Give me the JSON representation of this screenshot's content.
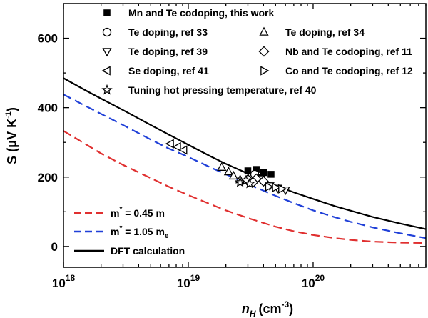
{
  "chart_data": {
    "type": "scatter",
    "xscale": "log",
    "xlim": [
      1e+18,
      8e+20
    ],
    "ylim": [
      -60,
      700
    ],
    "xlabel_main": "n",
    "xlabel_sub": "H",
    "xlabel_unit": "(cm",
    "xlabel_exp": "-3",
    "xlabel_close": ")",
    "ylabel_pre": "S (",
    "ylabel_mu": "μ",
    "ylabel_mid": "V K",
    "ylabel_exp": "-1",
    "ylabel_close": ")",
    "xticks": [
      {
        "value": 1e+18,
        "base": "10",
        "exp": "18"
      },
      {
        "value": 1e+19,
        "base": "10",
        "exp": "19"
      },
      {
        "value": 1e+20,
        "base": "10",
        "exp": "20"
      }
    ],
    "yticks": [
      0,
      200,
      400,
      600
    ],
    "scatter_series": [
      {
        "name": "Mn and Te codoping, this work",
        "marker": "square-filled",
        "points": [
          [
            3e+19,
            218
          ],
          [
            3.5e+19,
            222
          ],
          [
            4e+19,
            213
          ],
          [
            4.6e+19,
            208
          ],
          [
            3.7e+19,
            200
          ]
        ]
      },
      {
        "name": "Te doping, ref 33",
        "marker": "circle",
        "points": [
          [
            3.2e+19,
            200
          ],
          [
            3.4e+19,
            208
          ],
          [
            3.1e+19,
            186
          ]
        ]
      },
      {
        "name": "Te doping, ref 34",
        "marker": "triangle-up",
        "points": [
          [
            1.85e+19,
            228
          ],
          [
            2.1e+19,
            215
          ],
          [
            2.3e+19,
            203
          ],
          [
            2.6e+19,
            192
          ]
        ]
      },
      {
        "name": "Te doping, ref 39",
        "marker": "triangle-down",
        "points": [
          [
            3.8e+19,
            195
          ],
          [
            4.5e+19,
            175
          ],
          [
            5.2e+19,
            168
          ],
          [
            6e+19,
            163
          ]
        ]
      },
      {
        "name": "Nb and Te codoping, ref 11",
        "marker": "diamond",
        "points": [
          [
            3e+19,
            193
          ],
          [
            3.5e+19,
            195
          ],
          [
            4e+19,
            188
          ],
          [
            3.3e+19,
            185
          ]
        ]
      },
      {
        "name": "Se doping, ref 41",
        "marker": "triangle-left",
        "points": [
          [
            7.2e+18,
            296
          ],
          [
            8.2e+18,
            287
          ],
          [
            9.2e+18,
            278
          ]
        ]
      },
      {
        "name": "Co and Te codoping, ref 12",
        "marker": "triangle-right",
        "points": [
          [
            4.4e+19,
            172
          ],
          [
            5e+19,
            170
          ],
          [
            5.6e+19,
            166
          ]
        ]
      },
      {
        "name": "Tuning hot pressing temperature, ref 40",
        "marker": "star",
        "points": [
          [
            2.6e+19,
            185
          ],
          [
            2.9e+19,
            190
          ],
          [
            3.1e+19,
            181
          ]
        ]
      }
    ],
    "line_series": [
      {
        "name_main": "m",
        "name_exp": "*",
        "name_rest": " = 0.45 m",
        "name_sub": "",
        "color": "#e03030",
        "dash": true,
        "points": [
          [
            1e+18,
            333
          ],
          [
            1.5e+18,
            295
          ],
          [
            2e+18,
            268
          ],
          [
            3e+18,
            235
          ],
          [
            5e+18,
            197
          ],
          [
            7e+18,
            172
          ],
          [
            1e+19,
            148
          ],
          [
            1.5e+19,
            122
          ],
          [
            2e+19,
            104
          ],
          [
            3e+19,
            82
          ],
          [
            5e+19,
            57
          ],
          [
            7e+19,
            44
          ],
          [
            1e+20,
            33
          ],
          [
            1.5e+20,
            24
          ],
          [
            2e+20,
            19
          ],
          [
            3e+20,
            14
          ],
          [
            5e+20,
            11
          ],
          [
            8e+20,
            10
          ]
        ]
      },
      {
        "name_main": "m",
        "name_exp": "*",
        "name_rest": " = 1.05 m",
        "name_sub": "e",
        "color": "#2040d8",
        "dash": true,
        "points": [
          [
            1e+18,
            438
          ],
          [
            1.5e+18,
            405
          ],
          [
            2e+18,
            382
          ],
          [
            3e+18,
            350
          ],
          [
            5e+18,
            308
          ],
          [
            7e+18,
            282
          ],
          [
            1e+19,
            258
          ],
          [
            1.5e+19,
            228
          ],
          [
            2e+19,
            208
          ],
          [
            3e+19,
            180
          ],
          [
            5e+19,
            146
          ],
          [
            7e+19,
            125
          ],
          [
            1e+20,
            104
          ],
          [
            1.5e+20,
            84
          ],
          [
            2e+20,
            71
          ],
          [
            3e+20,
            55
          ],
          [
            5e+20,
            38
          ],
          [
            8e+20,
            24
          ]
        ]
      },
      {
        "name_main": "DFT calculation",
        "name_exp": "",
        "name_rest": "",
        "name_sub": "",
        "color": "#000000",
        "dash": false,
        "points": [
          [
            1e+18,
            485
          ],
          [
            1.5e+18,
            450
          ],
          [
            2e+18,
            426
          ],
          [
            3e+18,
            393
          ],
          [
            5e+18,
            350
          ],
          [
            7e+18,
            322
          ],
          [
            1e+19,
            293
          ],
          [
            1.5e+19,
            260
          ],
          [
            2e+19,
            238
          ],
          [
            3e+19,
            210
          ],
          [
            5e+19,
            176
          ],
          [
            7e+19,
            156
          ],
          [
            1e+20,
            137
          ],
          [
            1.5e+20,
            116
          ],
          [
            2e+20,
            103
          ],
          [
            3e+20,
            85
          ],
          [
            5e+20,
            66
          ],
          [
            8e+20,
            50
          ]
        ]
      }
    ],
    "legend_top_layout": "top, two columns",
    "legend_bottom_layout": "bottom-left"
  }
}
